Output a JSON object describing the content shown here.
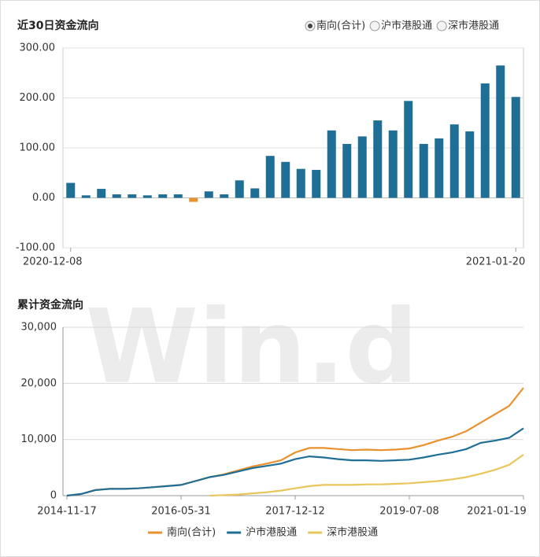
{
  "chart_data": [
    {
      "type": "bar",
      "title": "近30日资金流向",
      "options": [
        "南向(合计)",
        "沪市港股通",
        "深市港股通"
      ],
      "selected_option": 0,
      "categories": [
        "2020-12-08",
        null,
        null,
        null,
        null,
        null,
        null,
        null,
        null,
        null,
        null,
        null,
        null,
        null,
        null,
        null,
        null,
        null,
        null,
        null,
        null,
        null,
        null,
        null,
        null,
        null,
        null,
        null,
        null,
        "2021-01-20"
      ],
      "values": [
        30,
        5,
        18,
        7,
        7,
        5,
        7,
        7,
        -8,
        13,
        7,
        35,
        19,
        84,
        72,
        58,
        56,
        135,
        108,
        123,
        155,
        135,
        194,
        108,
        119,
        147,
        133,
        229,
        265,
        202
      ],
      "color": "#1f6e96",
      "negative_color": "#e8912d",
      "ylim": [
        -100,
        300
      ],
      "yticks": [
        {
          "value": -100,
          "label": "-100.00"
        },
        {
          "value": 0,
          "label": "0.00"
        },
        {
          "value": 100,
          "label": "100.00"
        },
        {
          "value": 200,
          "label": "200.00"
        },
        {
          "value": 300,
          "label": "300.00"
        }
      ],
      "grid": true
    },
    {
      "type": "line",
      "title": "累计资金流向",
      "watermark": "Win.d",
      "categories": [
        "2014-11-17",
        null,
        null,
        null,
        null,
        null,
        null,
        null,
        "2016-05-31",
        null,
        null,
        null,
        null,
        null,
        null,
        null,
        "2017-12-12",
        null,
        null,
        null,
        null,
        null,
        null,
        null,
        "2019-07-08",
        null,
        null,
        null,
        null,
        null,
        null,
        null,
        "2021-01-19"
      ],
      "series": [
        {
          "name": "南向(合计)",
          "color": "#e8912d",
          "values": [
            0,
            300,
            1000,
            1200,
            1200,
            1300,
            1500,
            1700,
            1900,
            2600,
            3300,
            3800,
            4500,
            5200,
            5700,
            6300,
            7700,
            8500,
            8500,
            8300,
            8100,
            8200,
            8100,
            8200,
            8400,
            9000,
            9800,
            10500,
            11500,
            13000,
            14500,
            16000,
            19200
          ]
        },
        {
          "name": "沪市港股通",
          "color": "#1f6e96",
          "values": [
            0,
            300,
            1000,
            1200,
            1200,
            1300,
            1500,
            1700,
            1900,
            2600,
            3300,
            3700,
            4300,
            4900,
            5300,
            5700,
            6500,
            7000,
            6800,
            6500,
            6300,
            6300,
            6200,
            6300,
            6400,
            6800,
            7300,
            7700,
            8300,
            9400,
            9800,
            10300,
            12000
          ]
        },
        {
          "name": "深市港股通",
          "color": "#e8c65a",
          "values": [
            null,
            null,
            null,
            null,
            null,
            null,
            null,
            null,
            null,
            null,
            0,
            100,
            200,
            400,
            600,
            900,
            1300,
            1700,
            1900,
            1900,
            1900,
            2000,
            2000,
            2100,
            2200,
            2400,
            2600,
            2900,
            3300,
            3900,
            4600,
            5500,
            7300
          ]
        }
      ],
      "ylim": [
        0,
        30000
      ],
      "yticks": [
        0,
        {
          "value": 10000,
          "label": "10,000"
        },
        {
          "value": 20000,
          "label": "20,000"
        },
        {
          "value": 30000,
          "label": "30,000"
        }
      ],
      "grid": true
    }
  ]
}
